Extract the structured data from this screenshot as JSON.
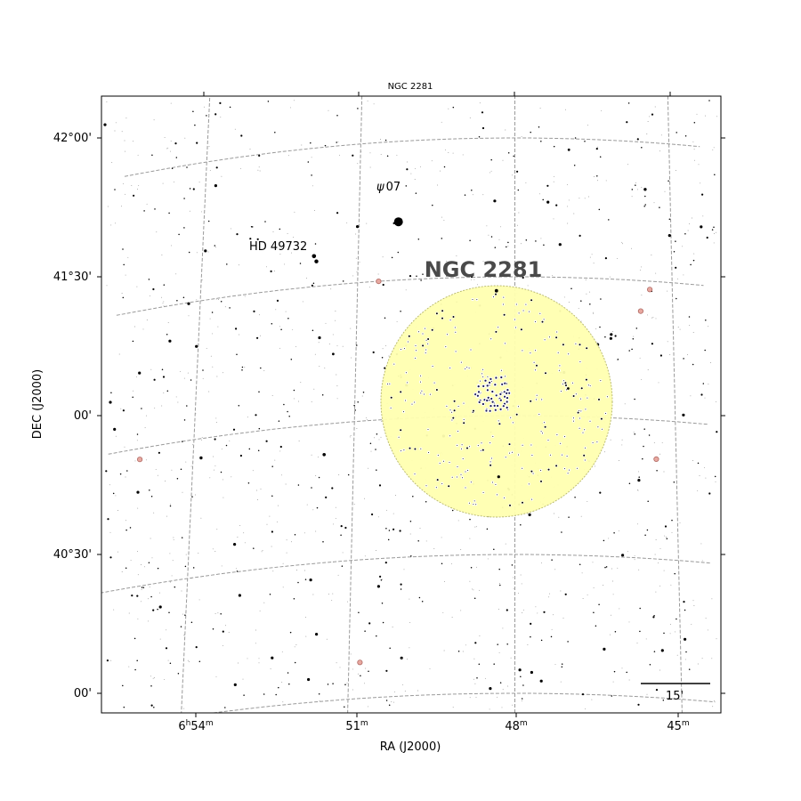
{
  "chart_data": {
    "type": "scatter",
    "title": "NGC 2281",
    "xlabel": "RA (J2000)",
    "ylabel": "DEC (J2000)",
    "x_ticks": [
      {
        "h": "6",
        "h_unit": "h",
        "m": "54",
        "m_unit": "m"
      },
      {
        "h": "",
        "h_unit": "",
        "m": "51",
        "m_unit": "m"
      },
      {
        "h": "",
        "h_unit": "",
        "m": "48",
        "m_unit": "m"
      },
      {
        "h": "",
        "h_unit": "",
        "m": "45",
        "m_unit": "m"
      }
    ],
    "y_ticks": [
      "42°00'",
      "41°30'",
      "00'",
      "40°30'",
      "00'"
    ],
    "grid": true,
    "cluster": {
      "name": "NGC 2281",
      "fill": "#ffffb0",
      "edge": "#b5b56a"
    },
    "labels": {
      "psi": "ψ",
      "psi_num": "07",
      "hd": "HD 49732"
    },
    "scale_bar_label": "15'",
    "bright_stars": [
      {
        "ra_min": 50.24,
        "dec": 41.71,
        "mag": 4.8,
        "label": "psi"
      },
      {
        "ra_min": 51.85,
        "dec": 41.61,
        "mag": 7.1
      },
      {
        "ra_min": 48.35,
        "dec": 41.45,
        "mag": 7.4
      },
      {
        "ra_min": 45.48,
        "dec": 41.83,
        "mag": 7.6
      },
      {
        "ra_min": 51.55,
        "dec": 40.89,
        "mag": 7.5
      },
      {
        "ra_min": 53.85,
        "dec": 40.93,
        "mag": 7.6
      },
      {
        "ra_min": 47.0,
        "dec": 41.1,
        "mag": 7.8
      },
      {
        "ra_min": 48.3,
        "dec": 40.78,
        "mag": 7.7
      },
      {
        "ra_min": 45.7,
        "dec": 40.78,
        "mag": 7.7
      },
      {
        "ra_min": 46.95,
        "dec": 41.96,
        "mag": 8.0
      },
      {
        "ra_min": 51.43,
        "dec": 41.25,
        "mag": 8.0
      }
    ],
    "hd_star": {
      "ra_min": 51.8,
      "dec": 41.59
    },
    "variable_stars": [
      {
        "ra_min": 50.6,
        "dec": 41.5
      },
      {
        "ra_min": 45.43,
        "dec": 41.47
      },
      {
        "ra_min": 45.61,
        "dec": 41.39
      },
      {
        "ra_min": 45.37,
        "dec": 40.86
      },
      {
        "ra_min": 55.0,
        "dec": 40.96
      },
      {
        "ra_min": 50.8,
        "dec": 40.13
      }
    ]
  }
}
